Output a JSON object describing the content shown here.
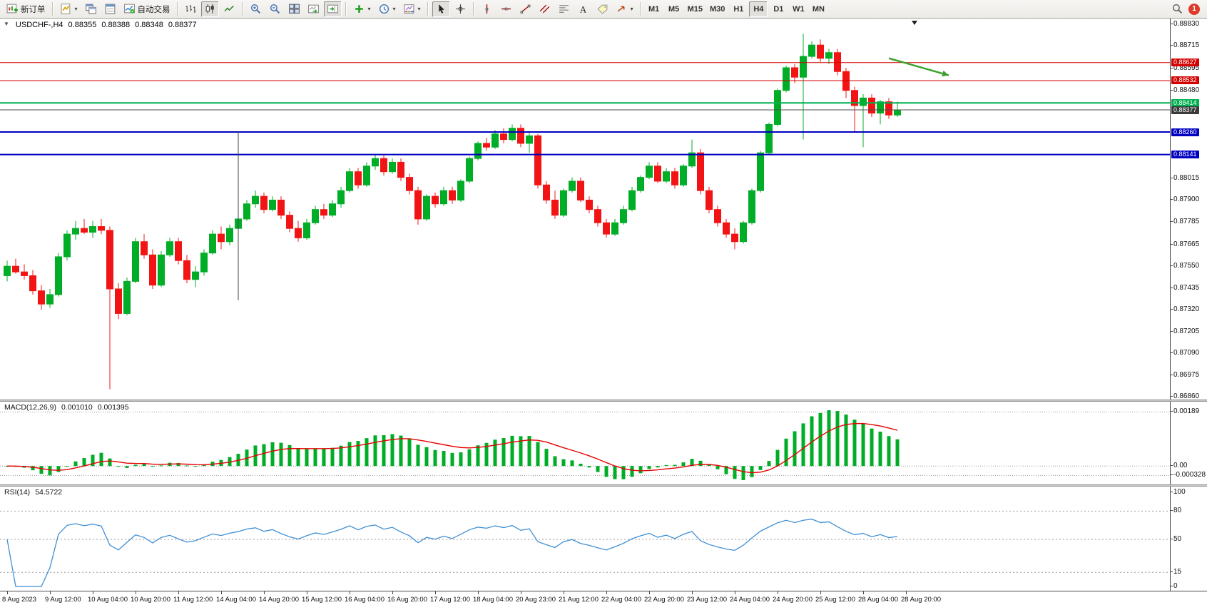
{
  "toolbar": {
    "new_order_label": "新订单",
    "auto_trading_label": "自动交易",
    "timeframes": [
      "M1",
      "M5",
      "M15",
      "M30",
      "H1",
      "H4",
      "D1",
      "W1",
      "MN"
    ],
    "active_timeframe": "H4",
    "notification_badge": "1",
    "icons": [
      "new-order-icon",
      "new-chart-icon",
      "profiles-icon",
      "data-window-icon",
      "auto-trading-icon",
      "bar-chart-icon",
      "candlestick-icon",
      "line-chart-icon",
      "zoom-in-icon",
      "zoom-out-icon",
      "tile-windows-icon",
      "auto-scroll-icon",
      "chart-shift-icon",
      "indicators-icon",
      "periods-icon",
      "templates-icon",
      "cursor-icon",
      "crosshair-icon",
      "vertical-line-icon",
      "horizontal-line-icon",
      "trendline-icon",
      "channel-icon",
      "fibonacci-icon",
      "text-icon",
      "label-icon",
      "arrows-icon",
      "search-icon"
    ]
  },
  "chart_header": {
    "symbol_period": "USDCHF-,H4",
    "open": "0.88355",
    "high": "0.88388",
    "low": "0.88348",
    "close": "0.88377"
  },
  "chart_data": {
    "type": "candlestick",
    "symbol": "USDCHF-",
    "period": "H4",
    "colors": {
      "up": "#00ad26",
      "down": "#f21414",
      "macd_hist": "#00ad26",
      "macd_signal": "#e60000",
      "rsi_line": "#3f8fd4",
      "bid_line": "#4d4d4d"
    },
    "price_axis": {
      "max": 0.8883,
      "min": 0.8686,
      "labels": [
        0.8883,
        0.88715,
        0.88595,
        0.8848,
        0.88015,
        0.879,
        0.87785,
        0.87665,
        0.8755,
        0.87435,
        0.8732,
        0.87205,
        0.8709,
        0.86975,
        0.8686
      ]
    },
    "hlines": [
      {
        "price": 0.88627,
        "label": "0.88627",
        "color": "#d40000",
        "width": 1
      },
      {
        "price": 0.88532,
        "label": "0.88532",
        "color": "#d40000",
        "width": 1
      },
      {
        "price": 0.88414,
        "label": "0.88414",
        "color": "#00b050",
        "width": 2
      },
      {
        "price": 0.8826,
        "label": "0.88260",
        "color": "#0000c0",
        "width": 2
      },
      {
        "price": 0.88141,
        "label": "0.88141",
        "color": "#0000c0",
        "width": 2
      }
    ],
    "bid": {
      "price": 0.88377,
      "label": "0.88377"
    },
    "candles": [
      [
        0.875,
        0.8758,
        0.8747,
        0.8755
      ],
      [
        0.8755,
        0.8759,
        0.8751,
        0.8752
      ],
      [
        0.8752,
        0.8756,
        0.8748,
        0.875
      ],
      [
        0.875,
        0.8753,
        0.874,
        0.8742
      ],
      [
        0.8742,
        0.8745,
        0.8732,
        0.8735
      ],
      [
        0.8735,
        0.8743,
        0.8733,
        0.874
      ],
      [
        0.874,
        0.8762,
        0.8739,
        0.876
      ],
      [
        0.876,
        0.8774,
        0.8758,
        0.8772
      ],
      [
        0.8772,
        0.8779,
        0.8769,
        0.8775
      ],
      [
        0.8775,
        0.878,
        0.8772,
        0.8773
      ],
      [
        0.8773,
        0.8779,
        0.877,
        0.8776
      ],
      [
        0.8776,
        0.878,
        0.8772,
        0.8774
      ],
      [
        0.8774,
        0.8776,
        0.869,
        0.8743
      ],
      [
        0.8743,
        0.8746,
        0.8727,
        0.873
      ],
      [
        0.873,
        0.8749,
        0.8729,
        0.8747
      ],
      [
        0.8747,
        0.877,
        0.8746,
        0.8768
      ],
      [
        0.8768,
        0.8772,
        0.8759,
        0.8761
      ],
      [
        0.8761,
        0.8764,
        0.8743,
        0.8745
      ],
      [
        0.8745,
        0.8763,
        0.8744,
        0.8761
      ],
      [
        0.8761,
        0.877,
        0.876,
        0.8768
      ],
      [
        0.8768,
        0.877,
        0.8756,
        0.8758
      ],
      [
        0.8758,
        0.8761,
        0.8746,
        0.8748
      ],
      [
        0.8748,
        0.8755,
        0.8744,
        0.8752
      ],
      [
        0.8752,
        0.8764,
        0.875,
        0.8762
      ],
      [
        0.8762,
        0.8774,
        0.8761,
        0.8772
      ],
      [
        0.8772,
        0.8776,
        0.8764,
        0.8768
      ],
      [
        0.8768,
        0.8777,
        0.8766,
        0.8775
      ],
      [
        0.8775,
        0.8782,
        0.8773,
        0.878
      ],
      [
        0.878,
        0.879,
        0.8779,
        0.8788
      ],
      [
        0.8788,
        0.8795,
        0.8786,
        0.8792
      ],
      [
        0.8792,
        0.8794,
        0.8783,
        0.8785
      ],
      [
        0.8785,
        0.8792,
        0.8784,
        0.879
      ],
      [
        0.879,
        0.8792,
        0.878,
        0.8782
      ],
      [
        0.8782,
        0.8784,
        0.8773,
        0.8775
      ],
      [
        0.8775,
        0.8779,
        0.8768,
        0.877
      ],
      [
        0.877,
        0.878,
        0.8769,
        0.8778
      ],
      [
        0.8778,
        0.8787,
        0.8777,
        0.8785
      ],
      [
        0.8785,
        0.8788,
        0.878,
        0.8782
      ],
      [
        0.8782,
        0.879,
        0.8781,
        0.8788
      ],
      [
        0.8788,
        0.8797,
        0.8786,
        0.8795
      ],
      [
        0.8795,
        0.8807,
        0.8794,
        0.8805
      ],
      [
        0.8805,
        0.8807,
        0.8796,
        0.8798
      ],
      [
        0.8798,
        0.881,
        0.8797,
        0.8808
      ],
      [
        0.8808,
        0.8814,
        0.8806,
        0.8812
      ],
      [
        0.8812,
        0.8814,
        0.8803,
        0.8805
      ],
      [
        0.8805,
        0.8812,
        0.8804,
        0.881
      ],
      [
        0.881,
        0.8812,
        0.88,
        0.8802
      ],
      [
        0.8802,
        0.8804,
        0.8793,
        0.8795
      ],
      [
        0.8795,
        0.8797,
        0.8777,
        0.878
      ],
      [
        0.878,
        0.8793,
        0.8779,
        0.8792
      ],
      [
        0.8792,
        0.8794,
        0.8786,
        0.8788
      ],
      [
        0.8788,
        0.8797,
        0.8787,
        0.8795
      ],
      [
        0.8795,
        0.8797,
        0.8788,
        0.879
      ],
      [
        0.879,
        0.8801,
        0.8789,
        0.88
      ],
      [
        0.88,
        0.8813,
        0.8799,
        0.8812
      ],
      [
        0.8812,
        0.8821,
        0.8811,
        0.882
      ],
      [
        0.882,
        0.8823,
        0.8816,
        0.8818
      ],
      [
        0.8818,
        0.8827,
        0.8817,
        0.8825
      ],
      [
        0.8825,
        0.8828,
        0.882,
        0.8822
      ],
      [
        0.8822,
        0.883,
        0.8821,
        0.8828
      ],
      [
        0.8828,
        0.883,
        0.8818,
        0.882
      ],
      [
        0.882,
        0.8826,
        0.8815,
        0.8824
      ],
      [
        0.8824,
        0.8825,
        0.8796,
        0.8798
      ],
      [
        0.8798,
        0.88,
        0.8788,
        0.879
      ],
      [
        0.879,
        0.8795,
        0.878,
        0.8782
      ],
      [
        0.8782,
        0.8796,
        0.8781,
        0.8795
      ],
      [
        0.8795,
        0.8802,
        0.8794,
        0.88
      ],
      [
        0.88,
        0.8802,
        0.8789,
        0.879
      ],
      [
        0.879,
        0.8792,
        0.8783,
        0.8785
      ],
      [
        0.8785,
        0.8787,
        0.8776,
        0.8778
      ],
      [
        0.8778,
        0.878,
        0.877,
        0.8772
      ],
      [
        0.8772,
        0.878,
        0.8771,
        0.8778
      ],
      [
        0.8778,
        0.8787,
        0.8777,
        0.8785
      ],
      [
        0.8785,
        0.8797,
        0.8784,
        0.8795
      ],
      [
        0.8795,
        0.8803,
        0.8794,
        0.8802
      ],
      [
        0.8802,
        0.881,
        0.8801,
        0.8808
      ],
      [
        0.8808,
        0.881,
        0.8799,
        0.88
      ],
      [
        0.88,
        0.8807,
        0.8799,
        0.8805
      ],
      [
        0.8805,
        0.8807,
        0.8796,
        0.8798
      ],
      [
        0.8798,
        0.8809,
        0.8797,
        0.8808
      ],
      [
        0.8808,
        0.8822,
        0.8807,
        0.8815
      ],
      [
        0.8815,
        0.8817,
        0.8793,
        0.8795
      ],
      [
        0.8795,
        0.8797,
        0.8783,
        0.8785
      ],
      [
        0.8785,
        0.8787,
        0.8776,
        0.8778
      ],
      [
        0.8778,
        0.878,
        0.877,
        0.8772
      ],
      [
        0.8772,
        0.8775,
        0.8764,
        0.8768
      ],
      [
        0.8768,
        0.8779,
        0.8767,
        0.8778
      ],
      [
        0.8778,
        0.8796,
        0.8777,
        0.8795
      ],
      [
        0.8795,
        0.8816,
        0.8794,
        0.8815
      ],
      [
        0.8815,
        0.8831,
        0.8814,
        0.883
      ],
      [
        0.883,
        0.8849,
        0.8829,
        0.8848
      ],
      [
        0.8848,
        0.8861,
        0.8847,
        0.886
      ],
      [
        0.886,
        0.8862,
        0.8852,
        0.8855
      ],
      [
        0.8855,
        0.8878,
        0.8822,
        0.8866
      ],
      [
        0.8866,
        0.8874,
        0.8865,
        0.8872
      ],
      [
        0.8872,
        0.8875,
        0.8863,
        0.8865
      ],
      [
        0.8865,
        0.887,
        0.8862,
        0.8868
      ],
      [
        0.8868,
        0.887,
        0.8856,
        0.8858
      ],
      [
        0.8858,
        0.886,
        0.8844,
        0.8848
      ],
      [
        0.8848,
        0.885,
        0.8826,
        0.884
      ],
      [
        0.884,
        0.8846,
        0.8818,
        0.8844
      ],
      [
        0.8844,
        0.8846,
        0.8834,
        0.8836
      ],
      [
        0.8836,
        0.8843,
        0.883,
        0.8842
      ],
      [
        0.8842,
        0.8844,
        0.8833,
        0.8835
      ],
      [
        0.8835,
        0.8842,
        0.8834,
        0.88377
      ]
    ],
    "time_labels": {
      "step": 5,
      "labels": [
        "8 Aug 2023",
        "9 Aug 12:00",
        "10 Aug 04:00",
        "10 Aug 20:00",
        "11 Aug 12:00",
        "14 Aug 04:00",
        "14 Aug 20:00",
        "15 Aug 12:00",
        "16 Aug 04:00",
        "16 Aug 20:00",
        "17 Aug 12:00",
        "18 Aug 04:00",
        "20 Aug 23:00",
        "21 Aug 12:00",
        "22 Aug 04:00",
        "22 Aug 20:00",
        "23 Aug 12:00",
        "24 Aug 04:00",
        "24 Aug 20:00",
        "25 Aug 12:00",
        "28 Aug 04:00",
        "28 Aug 20:00"
      ]
    },
    "annotations": {
      "arrow": {
        "from_index": 103,
        "from_price": 0.8865,
        "to_index": 110,
        "to_price": 0.8856,
        "color": "#3aa02c"
      },
      "vline": {
        "index": 27,
        "from_price": 0.88262,
        "to_price": 0.8737,
        "color": "#464646"
      },
      "shift_marker_index": 106
    },
    "macd": {
      "name": "MACD(12,26,9)",
      "value_main": "0.001010",
      "value_signal": "0.001395",
      "fast": 12,
      "slow": 26,
      "signal": 9,
      "axis_labels": [
        {
          "text": "0.00189",
          "value": 0.00189
        },
        {
          "text": "0.00",
          "value": 0
        },
        {
          "text": "-0.000328",
          "value": -0.000328
        }
      ]
    },
    "rsi": {
      "name": "RSI(14)",
      "value": "54.5722",
      "period": 14,
      "axis_labels": [
        {
          "text": "100",
          "value": 100
        },
        {
          "text": "80",
          "value": 80
        },
        {
          "text": "50",
          "value": 50
        },
        {
          "text": "15",
          "value": 15
        },
        {
          "text": "0",
          "value": 0
        }
      ],
      "dashed_levels": [
        80,
        50,
        15
      ]
    }
  }
}
